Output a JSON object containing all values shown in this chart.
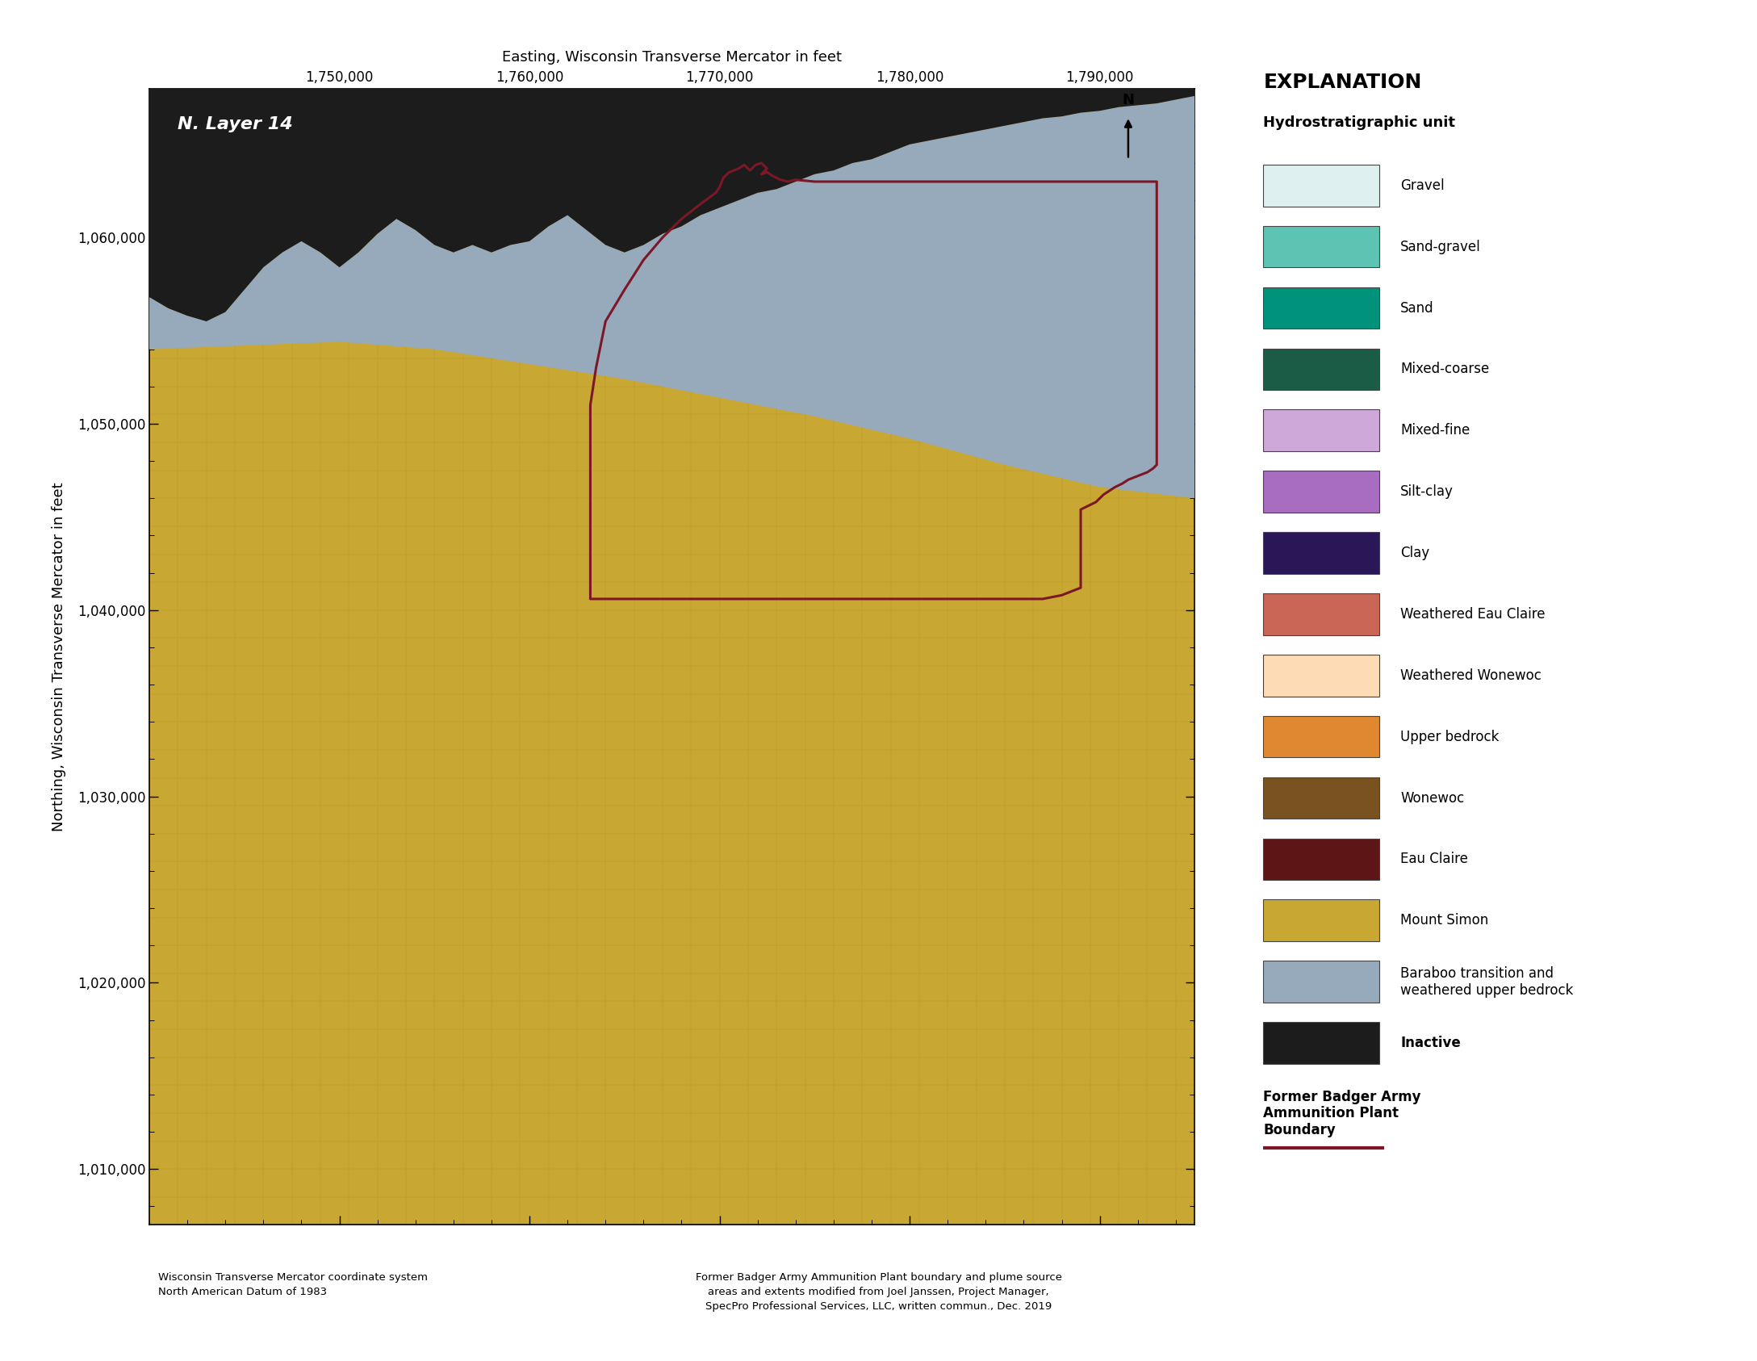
{
  "title_top": "Easting, Wisconsin Transverse Mercator in feet",
  "ylabel": "Northing, Wisconsin Transverse Mercator in feet",
  "layer_label": "N. Layer 14",
  "xlim": [
    1740000,
    1795000
  ],
  "ylim": [
    1007000,
    1068000
  ],
  "xticks": [
    1750000,
    1760000,
    1770000,
    1780000,
    1790000
  ],
  "yticks": [
    1010000,
    1020000,
    1030000,
    1040000,
    1050000,
    1060000
  ],
  "mount_simon_color": "#C8A732",
  "baraboo_color": "#96AABB",
  "inactive_color": "#1C1C1C",
  "boundary_color": "#7B1726",
  "legend_items": [
    {
      "label": "Gravel",
      "color": "#DFF0F0"
    },
    {
      "label": "Sand-gravel",
      "color": "#5DC4B4"
    },
    {
      "label": "Sand",
      "color": "#00927A"
    },
    {
      "label": "Mixed-coarse",
      "color": "#1B5C46"
    },
    {
      "label": "Mixed-fine",
      "color": "#CDA8D8"
    },
    {
      "label": "Silt-clay",
      "color": "#A86CC0"
    },
    {
      "label": "Clay",
      "color": "#2A1758"
    },
    {
      "label": "Weathered Eau Claire",
      "color": "#C96655"
    },
    {
      "label": "Weathered Wonewoc",
      "color": "#FDDBB4"
    },
    {
      "label": "Upper bedrock",
      "color": "#E08830"
    },
    {
      "label": "Wonewoc",
      "color": "#7A5220"
    },
    {
      "label": "Eau Claire",
      "color": "#5E1515"
    },
    {
      "label": "Mount Simon",
      "color": "#C8A732"
    },
    {
      "label": "Baraboo transition and\nweathered upper bedrock",
      "color": "#96AABB"
    },
    {
      "label": "Inactive",
      "color": "#1C1C1C"
    }
  ],
  "footnote_left": "Wisconsin Transverse Mercator coordinate system\nNorth American Datum of 1983",
  "footnote_right": "Former Badger Army Ammunition Plant boundary and plume source\nareas and extents modified from Joel Janssen, Project Manager,\nSpecPro Professional Services, LLC, written commun., Dec. 2019",
  "explanation_title": "EXPLANATION",
  "hydro_unit_label": "Hydrostratigraphic unit",
  "boundary_label": "Former Badger Army\nAmmunition Plant\nBoundary",
  "inactive_bottom_x": [
    1740000,
    1741000,
    1742000,
    1743000,
    1744000,
    1745000,
    1746000,
    1747000,
    1748000,
    1749000,
    1750000,
    1751000,
    1752000,
    1753000,
    1754000,
    1755000,
    1756000,
    1757000,
    1758000,
    1759000,
    1760000,
    1761000,
    1762000,
    1763000,
    1764000,
    1765000,
    1766000,
    1767000,
    1768000,
    1769000,
    1770000,
    1771000,
    1772000,
    1773000,
    1774000,
    1775000,
    1776000,
    1777000,
    1778000,
    1779000,
    1780000,
    1781000,
    1782000,
    1783000,
    1784000,
    1785000,
    1786000,
    1787000,
    1788000,
    1789000,
    1790000,
    1791000,
    1792000,
    1793000,
    1794000,
    1795000
  ],
  "inactive_bottom_y": [
    1056800,
    1056200,
    1055800,
    1055500,
    1056000,
    1057200,
    1058400,
    1059200,
    1059800,
    1059200,
    1058400,
    1059200,
    1060200,
    1061000,
    1060400,
    1059600,
    1059200,
    1059600,
    1059200,
    1059600,
    1059800,
    1060600,
    1061200,
    1060400,
    1059600,
    1059200,
    1059600,
    1060200,
    1060600,
    1061200,
    1061600,
    1062000,
    1062400,
    1062600,
    1063000,
    1063400,
    1063600,
    1064000,
    1064200,
    1064600,
    1065000,
    1065200,
    1065400,
    1065600,
    1065800,
    1066000,
    1066200,
    1066400,
    1066500,
    1066700,
    1066800,
    1067000,
    1067100,
    1067200,
    1067400,
    1067600
  ],
  "baraboo_bottom_x": [
    1740000,
    1745000,
    1750000,
    1755000,
    1760000,
    1765000,
    1770000,
    1775000,
    1780000,
    1785000,
    1790000,
    1795000
  ],
  "baraboo_bottom_y": [
    1054000,
    1054200,
    1054400,
    1054000,
    1053200,
    1052400,
    1051400,
    1050400,
    1049200,
    1047800,
    1046600,
    1046000
  ],
  "baaap_x": [
    1770200,
    1770500,
    1771000,
    1771300,
    1771600,
    1771900,
    1772200,
    1772500,
    1772200,
    1772500,
    1772800,
    1773200,
    1773600,
    1774000,
    1775000,
    1776000,
    1777000,
    1778000,
    1779000,
    1780000,
    1781000,
    1782000,
    1783000,
    1784000,
    1785000,
    1786000,
    1787000,
    1788000,
    1789000,
    1790000,
    1791000,
    1792000,
    1793000,
    1793000,
    1793000,
    1792800,
    1792500,
    1792000,
    1791500,
    1791200,
    1790800,
    1790500,
    1790200,
    1790000,
    1789800,
    1789600,
    1789400,
    1789200,
    1789000,
    1789000,
    1788500,
    1788000,
    1787500,
    1787000,
    1786500,
    1786000,
    1785500,
    1785000,
    1784500,
    1784000,
    1783500,
    1783000,
    1782500,
    1782000,
    1781800,
    1781600,
    1781400,
    1781200,
    1781000,
    1780800,
    1780600,
    1780400,
    1780200,
    1780000,
    1779500,
    1779000,
    1778500,
    1778000,
    1777500,
    1777000,
    1776500,
    1776000,
    1775500,
    1775000,
    1774500,
    1774000,
    1773500,
    1773000,
    1772500,
    1772000,
    1771500,
    1771000,
    1770500,
    1770000,
    1769500,
    1769000,
    1768500,
    1768000,
    1767500,
    1767000,
    1766500,
    1766000,
    1765500,
    1765000,
    1764500,
    1764000,
    1763500,
    1763200,
    1763200,
    1763200,
    1763200,
    1763500,
    1764000,
    1765000,
    1766000,
    1767000,
    1768000,
    1769000,
    1769800,
    1770000,
    1770200
  ],
  "baaap_y": [
    1063200,
    1063500,
    1063700,
    1063900,
    1063600,
    1063900,
    1064000,
    1063700,
    1063400,
    1063500,
    1063300,
    1063100,
    1063000,
    1063100,
    1063000,
    1063000,
    1063000,
    1063000,
    1063000,
    1063000,
    1063000,
    1063000,
    1063000,
    1063000,
    1063000,
    1063000,
    1063000,
    1063000,
    1063000,
    1063000,
    1063000,
    1063000,
    1063000,
    1058000,
    1047800,
    1047600,
    1047400,
    1047200,
    1047000,
    1046800,
    1046600,
    1046400,
    1046200,
    1046000,
    1045800,
    1045700,
    1045600,
    1045500,
    1045400,
    1041200,
    1041000,
    1040800,
    1040700,
    1040600,
    1040600,
    1040600,
    1040600,
    1040600,
    1040600,
    1040600,
    1040600,
    1040600,
    1040600,
    1040600,
    1040600,
    1040600,
    1040600,
    1040600,
    1040600,
    1040600,
    1040600,
    1040600,
    1040600,
    1040600,
    1040600,
    1040600,
    1040600,
    1040600,
    1040600,
    1040600,
    1040600,
    1040600,
    1040600,
    1040600,
    1040600,
    1040600,
    1040600,
    1040600,
    1040600,
    1040600,
    1040600,
    1040600,
    1040600,
    1040600,
    1040600,
    1040600,
    1040600,
    1040600,
    1040600,
    1040600,
    1040600,
    1040600,
    1040600,
    1040600,
    1040600,
    1040600,
    1040600,
    1040600,
    1044000,
    1048000,
    1051000,
    1053000,
    1055500,
    1057200,
    1058800,
    1060000,
    1061000,
    1061800,
    1062400,
    1062700,
    1063200
  ]
}
